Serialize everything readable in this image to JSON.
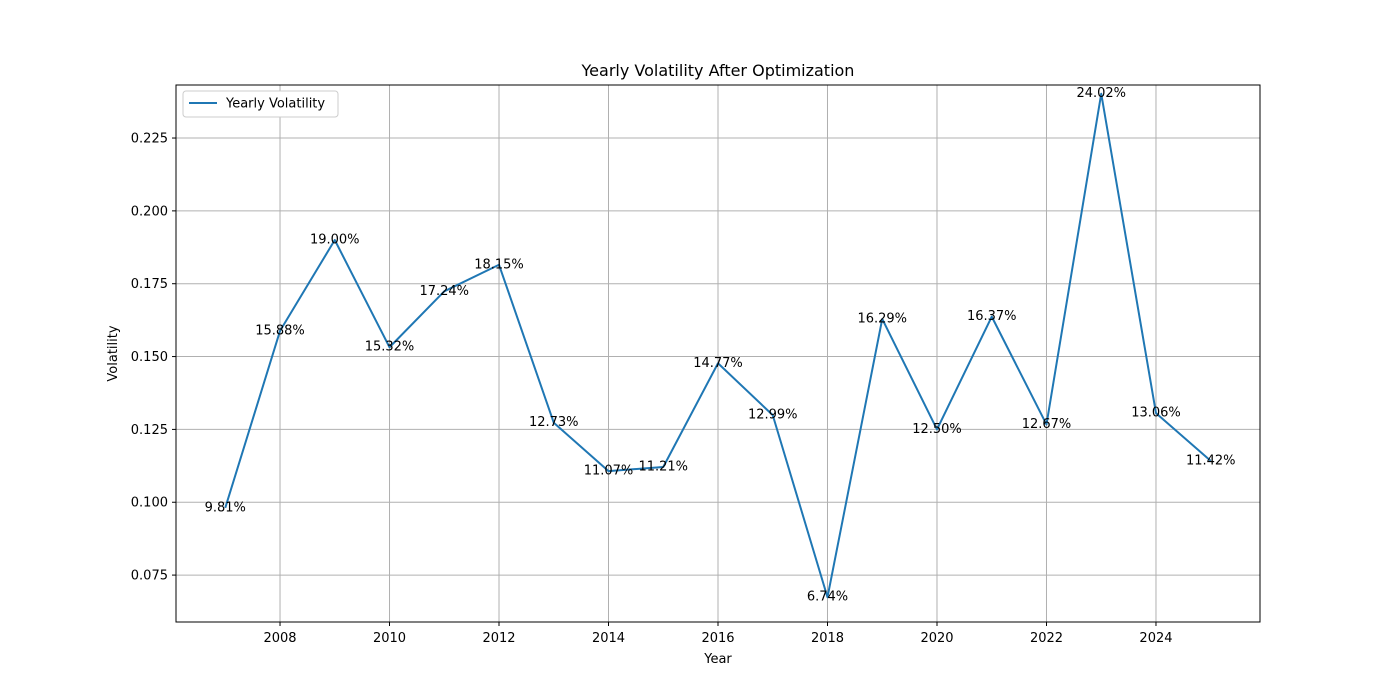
{
  "chart_data": {
    "type": "line",
    "title": "Yearly Volatility After Optimization",
    "xlabel": "Year",
    "ylabel": "Volatility",
    "xlim": [
      2006.1,
      2025.9
    ],
    "ylim": [
      0.0589,
      0.2432
    ],
    "xticks": [
      2008,
      2010,
      2012,
      2014,
      2016,
      2018,
      2020,
      2022,
      2024
    ],
    "yticks": [
      0.075,
      0.1,
      0.125,
      0.15,
      0.175,
      0.2,
      0.225
    ],
    "ytick_labels": [
      "0.075",
      "0.100",
      "0.125",
      "0.150",
      "0.175",
      "0.200",
      "0.225"
    ],
    "grid": true,
    "legend_position": "upper-left",
    "color": "#1f77b4",
    "series": [
      {
        "name": "Yearly Volatility",
        "x": [
          2007,
          2008,
          2009,
          2010,
          2011,
          2012,
          2013,
          2014,
          2015,
          2016,
          2017,
          2018,
          2019,
          2020,
          2021,
          2022,
          2023,
          2024,
          2025
        ],
        "values": [
          0.0981,
          0.1588,
          0.19,
          0.1532,
          0.1724,
          0.1815,
          0.1273,
          0.1107,
          0.1121,
          0.1477,
          0.1299,
          0.0674,
          0.1629,
          0.125,
          0.1637,
          0.1267,
          0.2402,
          0.1306,
          0.1142
        ],
        "labels": [
          "9.81%",
          "15.88%",
          "19.00%",
          "15.32%",
          "17.24%",
          "18.15%",
          "12.73%",
          "11.07%",
          "11.21%",
          "14.77%",
          "12.99%",
          "6.74%",
          "16.29%",
          "12.50%",
          "16.37%",
          "12.67%",
          "24.02%",
          "13.06%",
          "11.42%"
        ]
      }
    ]
  }
}
